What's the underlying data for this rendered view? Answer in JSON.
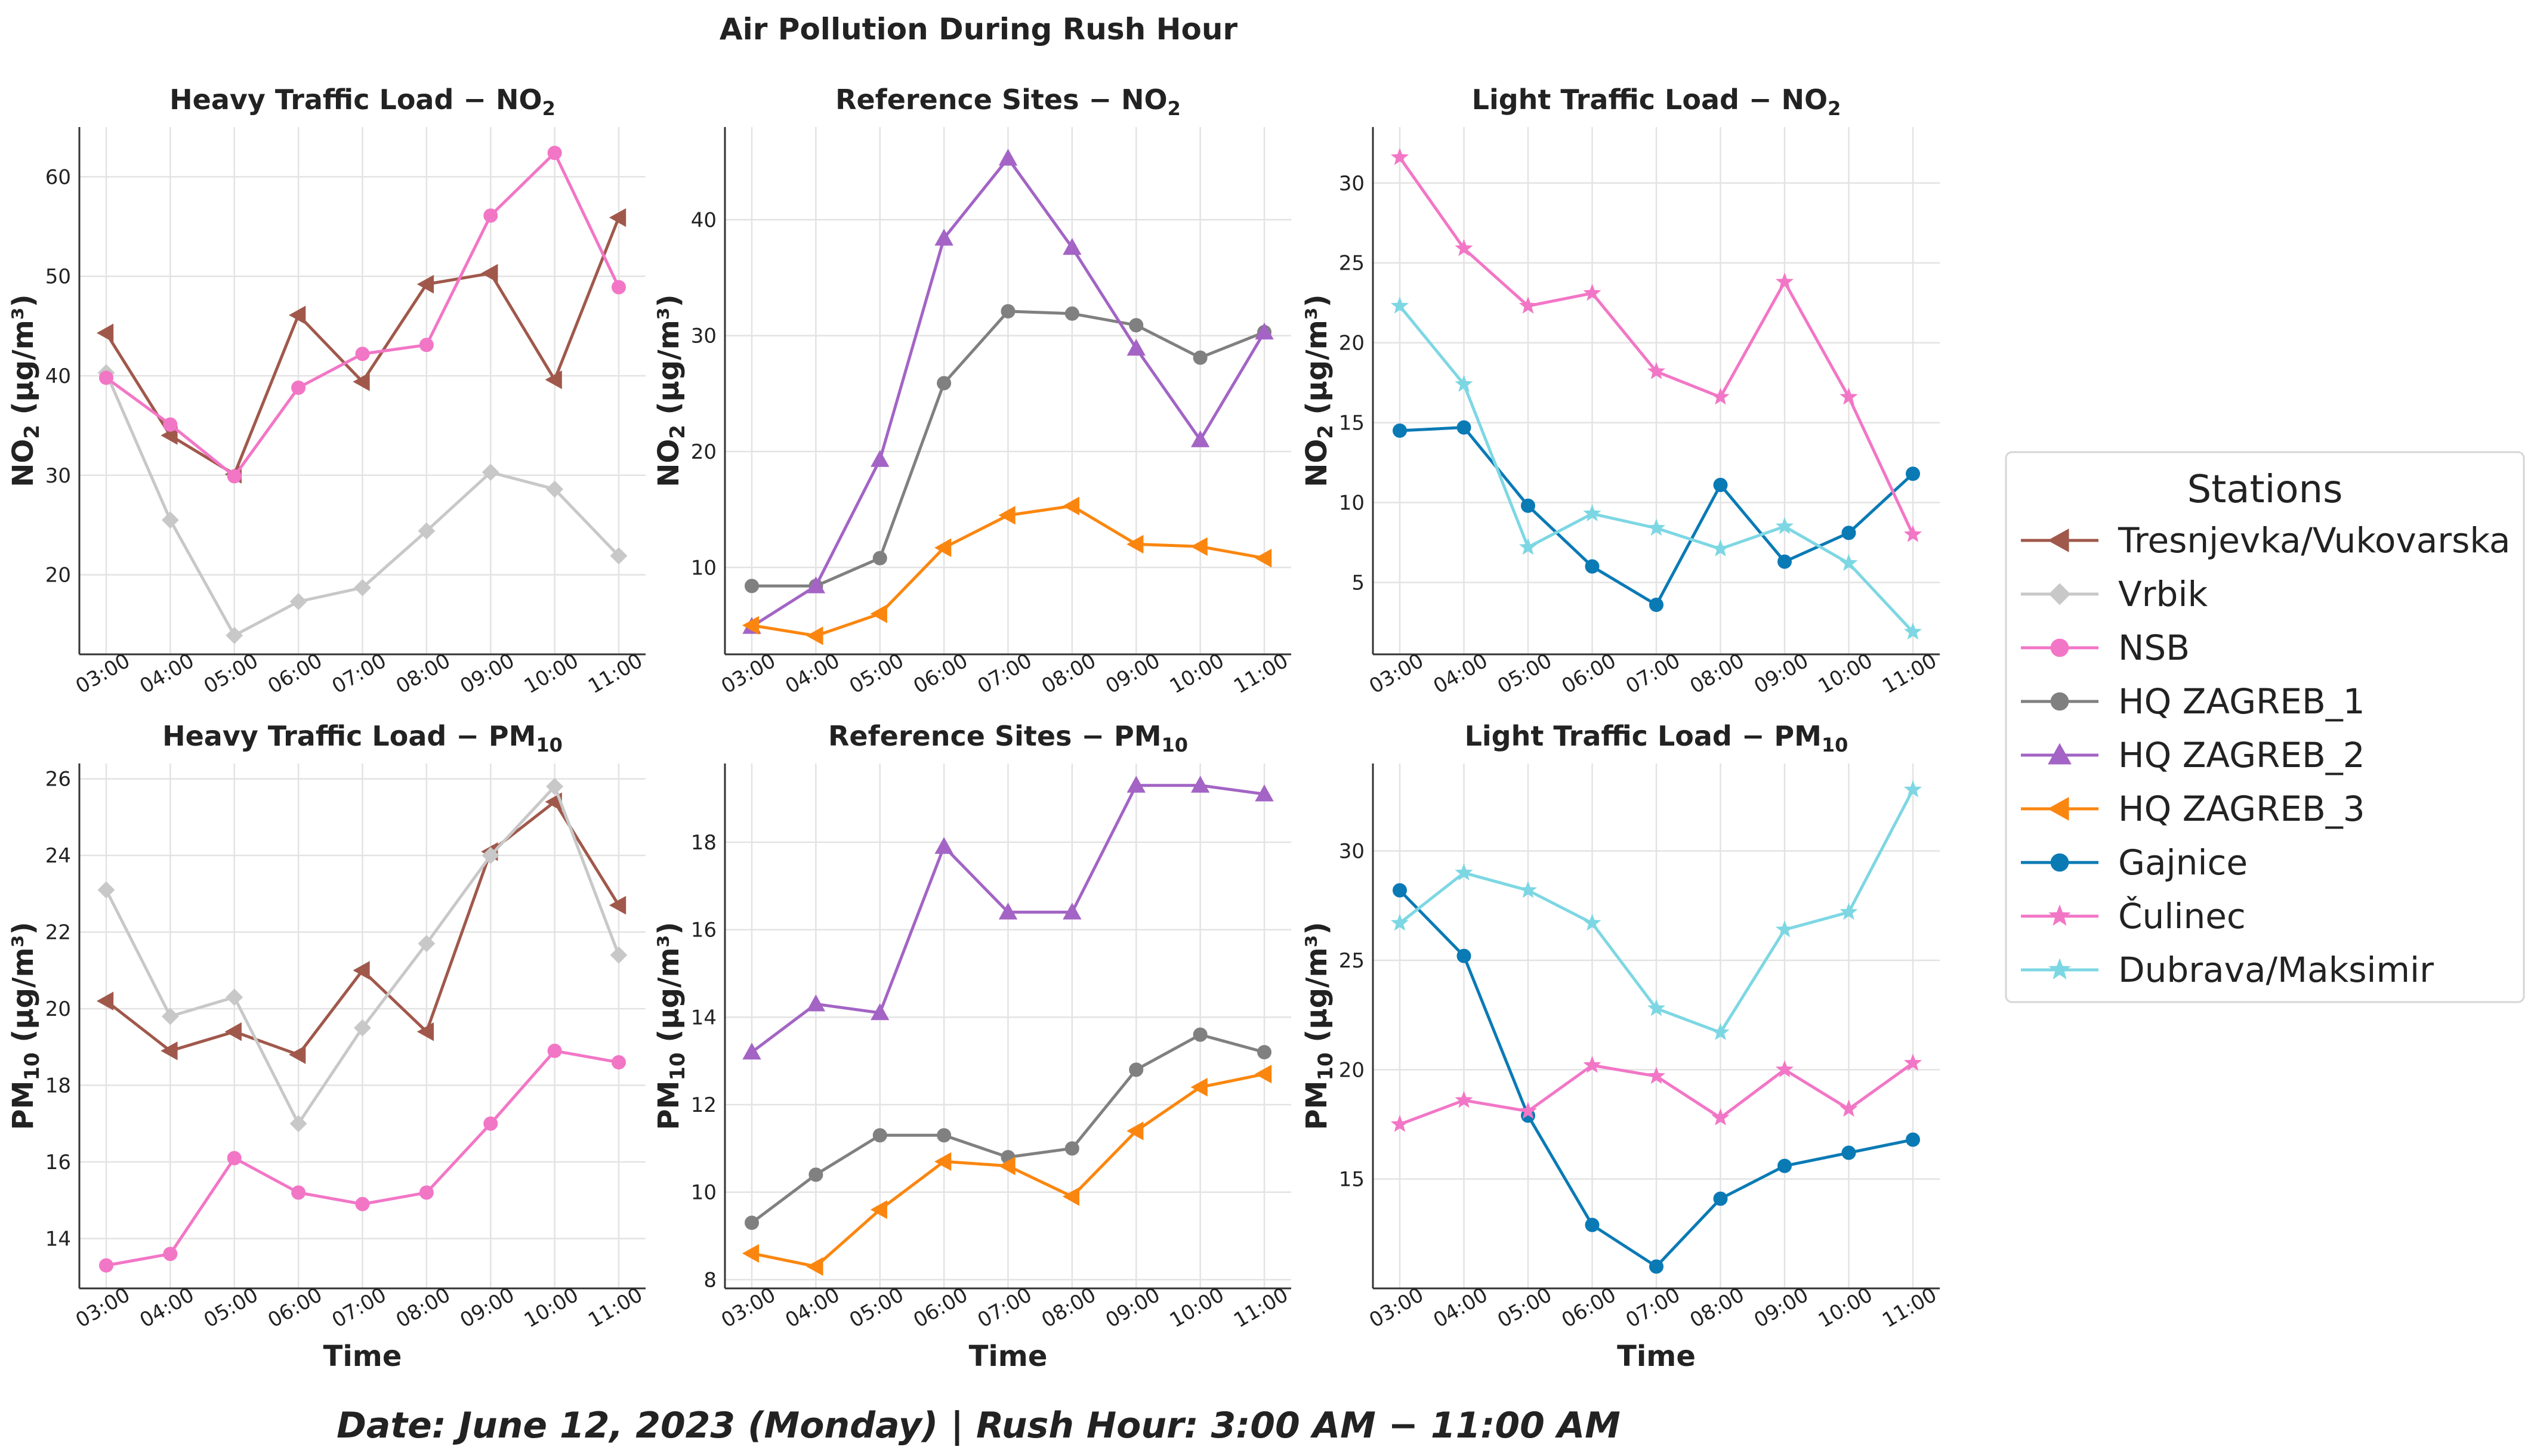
{
  "figure": {
    "title": "Air Pollution During Rush Hour",
    "footer": "Date: June 12, 2023 (Monday) | Rush Hour: 3:00 AM − 11:00 AM"
  },
  "legend": {
    "title": "Stations",
    "entries": [
      {
        "name": "Tresnjevka/Vukovarska",
        "color": "#a0584b",
        "marker": "triangle-left"
      },
      {
        "name": "Vrbik",
        "color": "#c8c8c8",
        "marker": "diamond"
      },
      {
        "name": "NSB",
        "color": "#f276c6",
        "marker": "circle"
      },
      {
        "name": "HQ ZAGREB_1",
        "color": "#808080",
        "marker": "circle"
      },
      {
        "name": "HQ ZAGREB_2",
        "color": "#a364c5",
        "marker": "triangle-up"
      },
      {
        "name": "HQ ZAGREB_3",
        "color": "#fb860f",
        "marker": "triangle-left"
      },
      {
        "name": "Gajnice",
        "color": "#0a7ab5",
        "marker": "circle"
      },
      {
        "name": "Čulinec",
        "color": "#f276c6",
        "marker": "star"
      },
      {
        "name": "Dubrava/Maksimir",
        "color": "#7dd7e3",
        "marker": "star"
      }
    ]
  },
  "chart_data": [
    {
      "type": "line",
      "title_main": "Heavy Traffic Load − NO",
      "title_sub": "2",
      "ylabel_main": "NO",
      "ylabel_sub": "2",
      "ylabel_unit": " (µg/m³)",
      "xlabel": "",
      "categories": [
        "03:00",
        "04:00",
        "05:00",
        "06:00",
        "07:00",
        "08:00",
        "09:00",
        "10:00",
        "11:00"
      ],
      "ylim": [
        12,
        65
      ],
      "yticks": [
        "20",
        "30",
        "40",
        "50",
        "60"
      ],
      "series": [
        {
          "name": "Tresnjevka/Vukovarska",
          "values": [
            44.3,
            34.0,
            30.1,
            46.1,
            39.4,
            49.2,
            50.3,
            39.6,
            55.9
          ]
        },
        {
          "name": "Vrbik",
          "values": [
            40.3,
            25.5,
            13.9,
            17.3,
            18.7,
            24.4,
            30.3,
            28.6,
            21.9
          ]
        },
        {
          "name": "NSB",
          "values": [
            39.8,
            35.1,
            29.9,
            38.8,
            42.2,
            43.1,
            56.1,
            62.4,
            48.9
          ]
        }
      ]
    },
    {
      "type": "line",
      "title_main": "Reference Sites − NO",
      "title_sub": "2",
      "ylabel_main": "NO",
      "ylabel_sub": "2",
      "ylabel_unit": " (µg/m³)",
      "xlabel": "",
      "categories": [
        "03:00",
        "04:00",
        "05:00",
        "06:00",
        "07:00",
        "08:00",
        "09:00",
        "10:00",
        "11:00"
      ],
      "ylim": [
        2.5,
        48
      ],
      "yticks": [
        "10",
        "20",
        "30",
        "40"
      ],
      "series": [
        {
          "name": "HQ ZAGREB_1",
          "values": [
            8.4,
            8.4,
            10.8,
            25.9,
            32.1,
            31.9,
            30.9,
            28.1,
            30.3
          ]
        },
        {
          "name": "HQ ZAGREB_2",
          "values": [
            4.9,
            8.4,
            19.3,
            38.4,
            45.3,
            37.6,
            28.9,
            21.0,
            30.3
          ]
        },
        {
          "name": "HQ ZAGREB_3",
          "values": [
            5.0,
            4.1,
            6.0,
            11.7,
            14.5,
            15.3,
            12.0,
            11.8,
            10.8
          ]
        }
      ]
    },
    {
      "type": "line",
      "title_main": "Light Traffic Load − NO",
      "title_sub": "2",
      "ylabel_main": "NO",
      "ylabel_sub": "2",
      "ylabel_unit": " (µg/m³)",
      "xlabel": "",
      "categories": [
        "03:00",
        "04:00",
        "05:00",
        "06:00",
        "07:00",
        "08:00",
        "09:00",
        "10:00",
        "11:00"
      ],
      "ylim": [
        0.5,
        33.5
      ],
      "yticks": [
        "5",
        "10",
        "15",
        "20",
        "25",
        "30"
      ],
      "series": [
        {
          "name": "Gajnice",
          "values": [
            14.5,
            14.7,
            9.8,
            6.0,
            3.6,
            11.1,
            6.3,
            8.1,
            11.8
          ]
        },
        {
          "name": "Čulinec",
          "values": [
            31.6,
            25.9,
            22.3,
            23.1,
            18.2,
            16.6,
            23.8,
            16.6,
            8.0
          ]
        },
        {
          "name": "Dubrava/Maksimir",
          "values": [
            22.3,
            17.4,
            7.2,
            9.3,
            8.4,
            7.1,
            8.5,
            6.2,
            1.9
          ]
        }
      ]
    },
    {
      "type": "line",
      "title_main": "Heavy Traffic Load − PM",
      "title_sub": "10",
      "ylabel_main": "PM",
      "ylabel_sub": "10",
      "ylabel_unit": " (µg/m³)",
      "xlabel": "Time",
      "categories": [
        "03:00",
        "04:00",
        "05:00",
        "06:00",
        "07:00",
        "08:00",
        "09:00",
        "10:00",
        "11:00"
      ],
      "ylim": [
        12.7,
        26.4
      ],
      "yticks": [
        "14",
        "16",
        "18",
        "20",
        "22",
        "24",
        "26"
      ],
      "series": [
        {
          "name": "Tresnjevka/Vukovarska",
          "values": [
            20.2,
            18.9,
            19.4,
            18.8,
            21.0,
            19.4,
            24.1,
            25.4,
            22.7
          ]
        },
        {
          "name": "Vrbik",
          "values": [
            23.1,
            19.8,
            20.3,
            17.0,
            19.5,
            21.7,
            24.0,
            25.8,
            21.4
          ]
        },
        {
          "name": "NSB",
          "values": [
            13.3,
            13.6,
            16.1,
            15.2,
            14.9,
            15.2,
            17.0,
            18.9,
            18.6
          ]
        }
      ]
    },
    {
      "type": "line",
      "title_main": "Reference Sites − PM",
      "title_sub": "10",
      "ylabel_main": "PM",
      "ylabel_sub": "10",
      "ylabel_unit": " (µg/m³)",
      "xlabel": "Time",
      "categories": [
        "03:00",
        "04:00",
        "05:00",
        "06:00",
        "07:00",
        "08:00",
        "09:00",
        "10:00",
        "11:00"
      ],
      "ylim": [
        7.8,
        19.8
      ],
      "yticks": [
        "8",
        "10",
        "12",
        "14",
        "16",
        "18"
      ],
      "series": [
        {
          "name": "HQ ZAGREB_1",
          "values": [
            9.3,
            10.4,
            11.3,
            11.3,
            10.8,
            11.0,
            12.8,
            13.6,
            13.2
          ]
        },
        {
          "name": "HQ ZAGREB_2",
          "values": [
            13.2,
            14.3,
            14.1,
            17.9,
            16.4,
            16.4,
            19.3,
            19.3,
            19.1
          ]
        },
        {
          "name": "HQ ZAGREB_3",
          "values": [
            8.6,
            8.3,
            9.6,
            10.7,
            10.6,
            9.9,
            11.4,
            12.4,
            12.7
          ]
        }
      ]
    },
    {
      "type": "line",
      "title_main": "Light Traffic Load − PM",
      "title_sub": "10",
      "ylabel_main": "PM",
      "ylabel_sub": "10",
      "ylabel_unit": " (µg/m³)",
      "xlabel": "Time",
      "categories": [
        "03:00",
        "04:00",
        "05:00",
        "06:00",
        "07:00",
        "08:00",
        "09:00",
        "10:00",
        "11:00"
      ],
      "ylim": [
        10.0,
        34.0
      ],
      "yticks": [
        "15",
        "20",
        "25",
        "30"
      ],
      "series": [
        {
          "name": "Gajnice",
          "values": [
            28.2,
            25.2,
            17.9,
            12.9,
            11.0,
            14.1,
            15.6,
            16.2,
            16.8
          ]
        },
        {
          "name": "Čulinec",
          "values": [
            17.5,
            18.6,
            18.1,
            20.2,
            19.7,
            17.8,
            20.0,
            18.2,
            20.3
          ]
        },
        {
          "name": "Dubrava/Maksimir",
          "values": [
            26.7,
            29.0,
            28.2,
            26.7,
            22.8,
            21.7,
            26.4,
            27.2,
            32.8
          ]
        }
      ]
    }
  ]
}
